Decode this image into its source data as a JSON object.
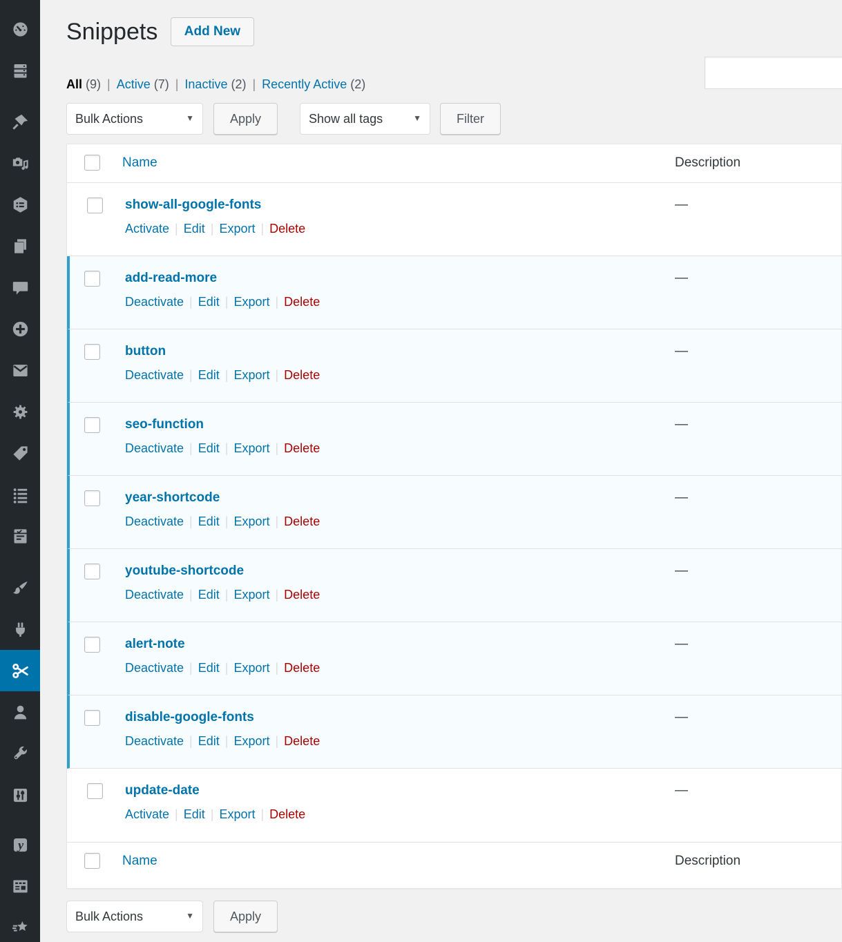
{
  "page": {
    "title": "Snippets",
    "add_new": "Add New"
  },
  "search": {
    "value": ""
  },
  "views": [
    {
      "label": "All",
      "count": "(9)",
      "current": true
    },
    {
      "label": "Active",
      "count": "(7)",
      "current": false
    },
    {
      "label": "Inactive",
      "count": "(2)",
      "current": false
    },
    {
      "label": "Recently Active",
      "count": "(2)",
      "current": false
    }
  ],
  "toolbar": {
    "bulk_actions": "Bulk Actions",
    "apply": "Apply",
    "tag_filter": "Show all tags",
    "filter": "Filter"
  },
  "table": {
    "name_header": "Name",
    "description_header": "Description",
    "rows": [
      {
        "name": "show-all-google-fonts",
        "active": false,
        "actions": [
          "Activate",
          "Edit",
          "Export",
          "Delete"
        ],
        "description": "—"
      },
      {
        "name": "add-read-more",
        "active": true,
        "actions": [
          "Deactivate",
          "Edit",
          "Export",
          "Delete"
        ],
        "description": "—"
      },
      {
        "name": "button",
        "active": true,
        "actions": [
          "Deactivate",
          "Edit",
          "Export",
          "Delete"
        ],
        "description": "—"
      },
      {
        "name": "seo-function",
        "active": true,
        "actions": [
          "Deactivate",
          "Edit",
          "Export",
          "Delete"
        ],
        "description": "—"
      },
      {
        "name": "year-shortcode",
        "active": true,
        "actions": [
          "Deactivate",
          "Edit",
          "Export",
          "Delete"
        ],
        "description": "—"
      },
      {
        "name": "youtube-shortcode",
        "active": true,
        "actions": [
          "Deactivate",
          "Edit",
          "Export",
          "Delete"
        ],
        "description": "—"
      },
      {
        "name": "alert-note",
        "active": true,
        "actions": [
          "Deactivate",
          "Edit",
          "Export",
          "Delete"
        ],
        "description": "—"
      },
      {
        "name": "disable-google-fonts",
        "active": true,
        "actions": [
          "Deactivate",
          "Edit",
          "Export",
          "Delete"
        ],
        "description": "—"
      },
      {
        "name": "update-date",
        "active": false,
        "actions": [
          "Activate",
          "Edit",
          "Export",
          "Delete"
        ],
        "description": "—"
      }
    ]
  },
  "sidebar": {
    "items": [
      {
        "icon": "dashboard-icon",
        "active": false
      },
      {
        "icon": "server-icon",
        "active": false
      },
      {
        "icon": "pushpin-icon",
        "active": false
      },
      {
        "icon": "media-icon",
        "active": false
      },
      {
        "icon": "hexagon-list-icon",
        "active": false
      },
      {
        "icon": "pages-icon",
        "active": false
      },
      {
        "icon": "comments-icon",
        "active": false
      },
      {
        "icon": "plus-circle-icon",
        "active": false
      },
      {
        "icon": "mail-icon",
        "active": false
      },
      {
        "icon": "gear-icon",
        "active": false
      },
      {
        "icon": "tag-icon",
        "active": false
      },
      {
        "icon": "list-icon",
        "active": false
      },
      {
        "icon": "clipboard-icon",
        "active": false
      },
      {
        "icon": "brush-icon",
        "active": false
      },
      {
        "icon": "plugin-icon",
        "active": false
      },
      {
        "icon": "scissors-icon",
        "active": true
      },
      {
        "icon": "users-icon",
        "active": false
      },
      {
        "icon": "wrench-icon",
        "active": false
      },
      {
        "icon": "sliders-icon",
        "active": false
      },
      {
        "icon": "yoast-icon",
        "active": false
      },
      {
        "icon": "grid-icon",
        "active": false
      },
      {
        "icon": "star-icon",
        "active": false
      }
    ]
  },
  "colors": {
    "accent": "#0073aa",
    "sidebar_bg": "#23282d",
    "active_row_bg": "#f7fcfe",
    "active_row_border": "#2ea2cc",
    "delete": "#aa0000",
    "page_bg": "#f1f1f1"
  }
}
